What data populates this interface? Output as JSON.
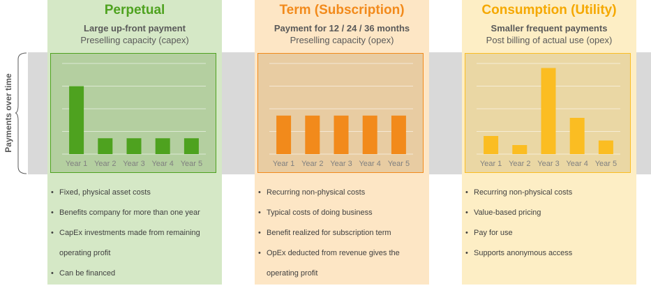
{
  "y_axis_label": "Payments over time",
  "columns": [
    {
      "title": "Perpetual",
      "subtitle_bold": "Large up-front payment",
      "subtitle": "Preselling capacity (capex)",
      "bullets": [
        "Fixed, physical asset costs",
        "Benefits company for more than one year",
        "CapEx investments made from remaining",
        "operating profit",
        "Can be financed"
      ],
      "continuation_index": 3
    },
    {
      "title": "Term (Subscription)",
      "subtitle_bold": "Payment for 12 / 24 / 36 months",
      "subtitle": "Preselling capacity (opex)",
      "bullets": [
        "Recurring non-physical costs",
        "Typical costs of doing business",
        "Benefit realized for subscription term",
        "OpEx deducted from revenue gives the",
        "operating profit"
      ],
      "continuation_index": 4
    },
    {
      "title": "Consumption (Utility)",
      "subtitle_bold": "Smaller frequent payments",
      "subtitle": "Post billing of actual use (opex)",
      "bullets": [
        "Recurring non-physical costs",
        "Value-based pricing",
        "Pay for use",
        "Supports anonymous access"
      ],
      "continuation_index": -1
    }
  ],
  "colors": {
    "perpetual_bg": "#d5e8c6",
    "perpetual_accent": "#4ea21f",
    "term_bg": "#fde6c5",
    "term_accent": "#f28a1b",
    "consumption_bg": "#fdeec5",
    "consumption_accent": "#fbbd22"
  },
  "chart_data": [
    {
      "type": "bar",
      "categories": [
        "Year 1",
        "Year 2",
        "Year 3",
        "Year 4",
        "Year 5"
      ],
      "values": [
        3.0,
        0.7,
        0.7,
        0.7,
        0.7
      ],
      "ylim": [
        0,
        4
      ],
      "grid": true
    },
    {
      "type": "bar",
      "categories": [
        "Year 1",
        "Year 2",
        "Year 3",
        "Year 4",
        "Year 5"
      ],
      "values": [
        1.7,
        1.7,
        1.7,
        1.7,
        1.7
      ],
      "ylim": [
        0,
        4
      ],
      "grid": true
    },
    {
      "type": "bar",
      "categories": [
        "Year 1",
        "Year 2",
        "Year 3",
        "Year 4",
        "Year 5"
      ],
      "values": [
        0.8,
        0.4,
        3.8,
        1.6,
        0.6
      ],
      "ylim": [
        0,
        4
      ],
      "grid": true
    }
  ]
}
